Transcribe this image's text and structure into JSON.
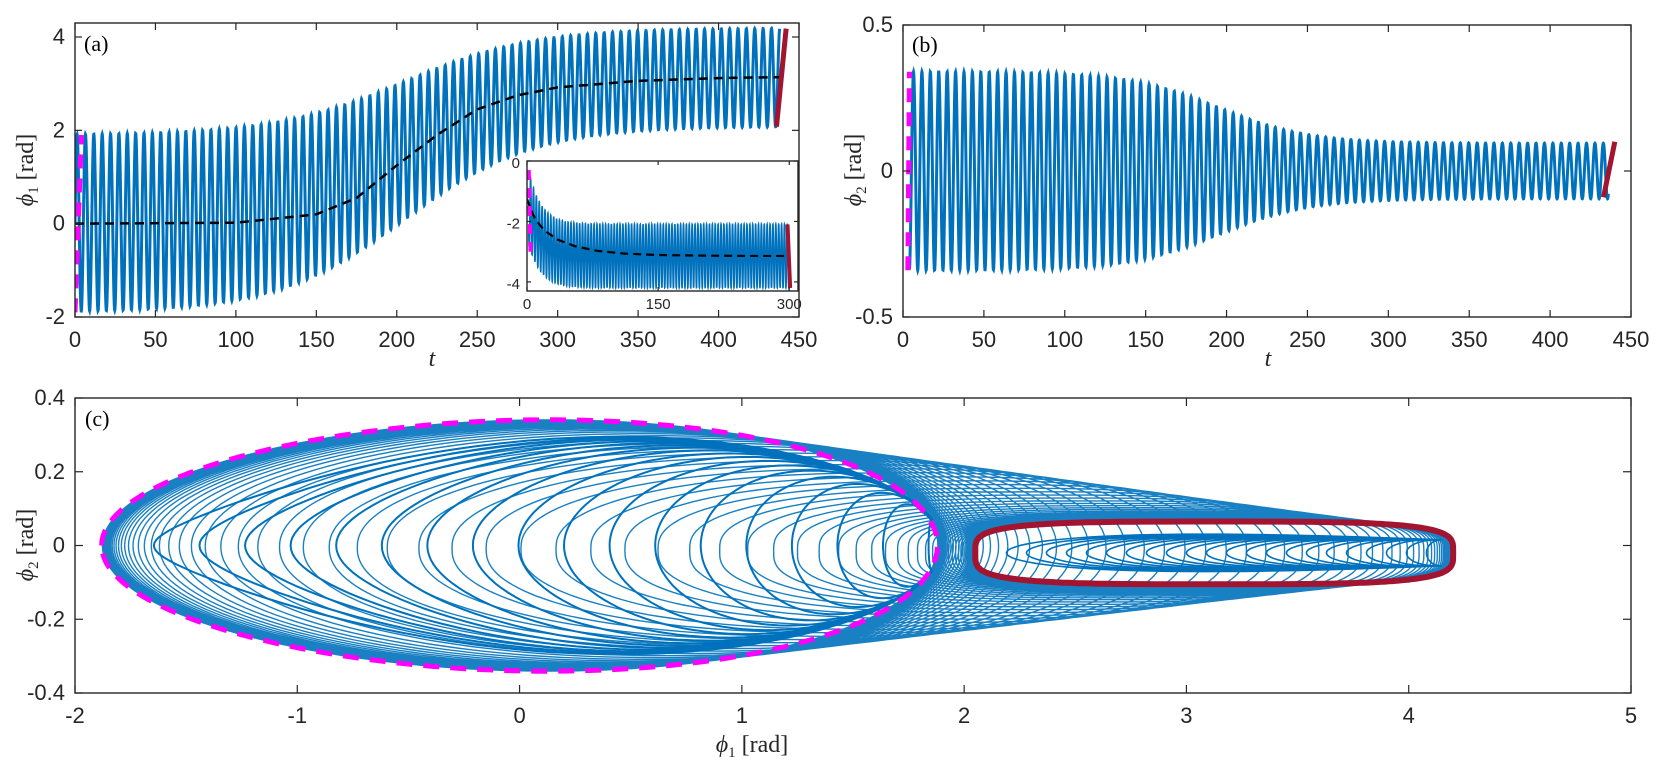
{
  "colors": {
    "main": "#0072bd",
    "initial": "#ff00ff",
    "final": "#a2142f",
    "mean": "#000000",
    "axis": "#262626"
  },
  "chart_data": [
    {
      "panel": "(a)",
      "type": "line",
      "xlabel": "t",
      "ylabel": "ϕ1 [rad]",
      "ylabel_sym": "ϕ",
      "ylabel_sub": "1",
      "ylabel_unit": " [rad]",
      "xlim": [
        0,
        450
      ],
      "ylim": [
        -2,
        4.3
      ],
      "xticks": [
        0,
        50,
        100,
        150,
        200,
        250,
        300,
        350,
        400,
        450
      ],
      "xtick_labels": [
        "0",
        "50",
        "100",
        "150",
        "200",
        "250",
        "300",
        "350",
        "400",
        "450"
      ],
      "yticks": [
        -2,
        0,
        2,
        4
      ],
      "ytick_labels": [
        "-2",
        "0",
        "2",
        "4"
      ],
      "series": [
        {
          "name": "phi1 trajectory",
          "style": "oscillation",
          "t_end": 438,
          "period": 5.2,
          "center_start": 0,
          "center_end": 3.14,
          "amp_start": 1.9,
          "amp_end": 1.05,
          "transition_mid": 205,
          "transition_width": 40
        },
        {
          "name": "phi1 mean",
          "style": "dashed",
          "t": [
            0,
            100,
            150,
            175,
            200,
            225,
            250,
            275,
            300,
            350,
            400,
            438
          ],
          "y": [
            0,
            0.02,
            0.2,
            0.55,
            1.25,
            1.9,
            2.45,
            2.75,
            2.92,
            3.06,
            3.12,
            3.14
          ]
        },
        {
          "name": "initial orbit",
          "style": "dashed",
          "t": [
            0,
            4
          ],
          "y": [
            -1.9,
            1.9
          ]
        },
        {
          "name": "final orbit",
          "style": "solid",
          "t": [
            436,
            442
          ],
          "y": [
            2.08,
            4.18
          ]
        }
      ],
      "inset": {
        "xlim": [
          0,
          310
        ],
        "ylim": [
          -4.3,
          0
        ],
        "xticks": [
          0,
          150,
          300
        ],
        "xtick_labels": [
          "0",
          "150",
          "300"
        ],
        "yticks": [
          0,
          -2,
          -4
        ],
        "ytick_labels": [
          "0",
          "-2",
          "-4"
        ],
        "series": [
          {
            "name": "inset trajectory",
            "style": "oscillation",
            "t_end": 300,
            "period": 3.3,
            "center_start": -1.3,
            "center_end": -3.14,
            "amp_start": 1.25,
            "amp_end": 1.05,
            "decay": 14
          },
          {
            "name": "inset mean",
            "style": "dashed",
            "t": [
              0,
              5,
              10,
              20,
              35,
              55,
              80,
              110,
              150,
              200,
              250,
              300
            ],
            "y": [
              -1.25,
              -1.65,
              -1.95,
              -2.3,
              -2.6,
              -2.82,
              -2.97,
              -3.06,
              -3.11,
              -3.13,
              -3.14,
              -3.14
            ]
          },
          {
            "name": "inset initial",
            "style": "dashed",
            "t": [
              2,
              4
            ],
            "y": [
              -0.3,
              -3.0
            ]
          },
          {
            "name": "inset final",
            "style": "solid",
            "t": [
              298,
              301
            ],
            "y": [
              -2.1,
              -4.2
            ]
          }
        ]
      }
    },
    {
      "panel": "(b)",
      "type": "line",
      "xlabel": "t",
      "ylabel": "ϕ2 [rad]",
      "ylabel_sym": "ϕ",
      "ylabel_sub": "2",
      "ylabel_unit": " [rad]",
      "xlim": [
        0,
        450
      ],
      "ylim": [
        -0.5,
        0.5
      ],
      "xticks": [
        0,
        50,
        100,
        150,
        200,
        250,
        300,
        350,
        400,
        450
      ],
      "xtick_labels": [
        "0",
        "50",
        "100",
        "150",
        "200",
        "250",
        "300",
        "350",
        "400",
        "450"
      ],
      "yticks": [
        -0.5,
        0,
        0.5
      ],
      "ytick_labels": [
        "-0.5",
        "0",
        "0.5"
      ],
      "series": [
        {
          "name": "phi2 trajectory",
          "style": "oscillation",
          "t_end": 436,
          "period": 5.2,
          "center_start": 0,
          "center_end": 0,
          "amp_start": 0.34,
          "amp_end": 0.095,
          "transition_mid": 195,
          "transition_width": 28
        },
        {
          "name": "initial orbit",
          "style": "dashed",
          "t": [
            3,
            4
          ],
          "y": [
            -0.34,
            0.34
          ]
        },
        {
          "name": "final orbit",
          "style": "solid",
          "t": [
            433,
            440
          ],
          "y": [
            -0.09,
            0.1
          ]
        }
      ]
    },
    {
      "panel": "(c)",
      "type": "line",
      "xlabel": "ϕ1 [rad]",
      "xlabel_sym": "ϕ",
      "xlabel_sub": "1",
      "xlabel_unit": " [rad]",
      "ylabel": "ϕ2 [rad]",
      "ylabel_sym": "ϕ",
      "ylabel_sub": "2",
      "ylabel_unit": " [rad]",
      "xlim": [
        -2,
        5
      ],
      "ylim": [
        -0.4,
        0.4
      ],
      "xticks": [
        -2,
        -1,
        0,
        1,
        2,
        3,
        4,
        5
      ],
      "xtick_labels": [
        "-2",
        "-1",
        "0",
        "1",
        "2",
        "3",
        "4",
        "5"
      ],
      "yticks": [
        -0.4,
        -0.2,
        0,
        0.2,
        0.4
      ],
      "ytick_labels": [
        "-0.4",
        "-0.2",
        "0",
        "0.2",
        "0.4"
      ],
      "series": [
        {
          "name": "initial limit cycle",
          "style": "dashed",
          "a": 1.88,
          "b": 0.34,
          "center": 0
        },
        {
          "name": "final limit cycle",
          "style": "solid",
          "x0": 2.05,
          "x1": 4.2,
          "y_top": 0.1,
          "y_bot": -0.1
        },
        {
          "name": "phase trajectory",
          "style": "spiral",
          "transition_mid": 2.0
        }
      ]
    }
  ]
}
